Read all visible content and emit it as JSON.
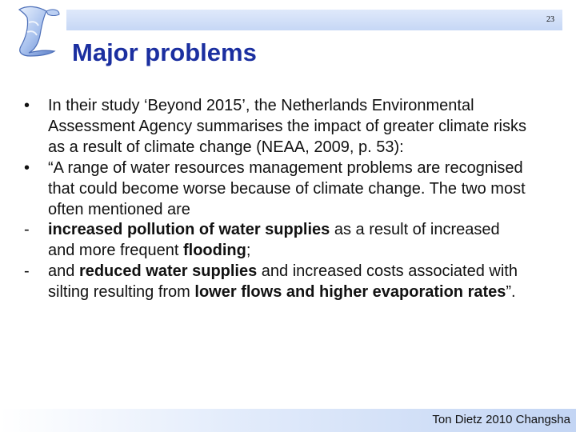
{
  "slide": {
    "number": "23",
    "title": "Major problems",
    "footer": "Ton Dietz 2010 Changsha"
  },
  "content": {
    "bullet1": {
      "marker": "•",
      "text": "In their study ‘Beyond 2015’, the Netherlands Environmental Assessment Agency summarises the impact of greater climate risks as a result of climate change (NEAA, 2009, p. 53):"
    },
    "bullet2": {
      "marker": "•",
      "text": "“A range of water resources management problems are recognised that could become worse because of climate change. The two most often mentioned are"
    },
    "dash1": {
      "marker": "-",
      "bold1": "increased pollution of water supplies",
      "text1": " as a result of increased and more frequent ",
      "bold2": "flooding",
      "text2": ";"
    },
    "dash2": {
      "marker": "-",
      "text1": "and ",
      "bold1": "reduced water supplies",
      "text2": " and increased costs associated with silting resulting from ",
      "bold2": "lower flows and higher evaporation rates",
      "text3": "”."
    }
  },
  "colors": {
    "title": "#1b2fa0",
    "band": "#c6d7f5",
    "text": "#111111"
  }
}
